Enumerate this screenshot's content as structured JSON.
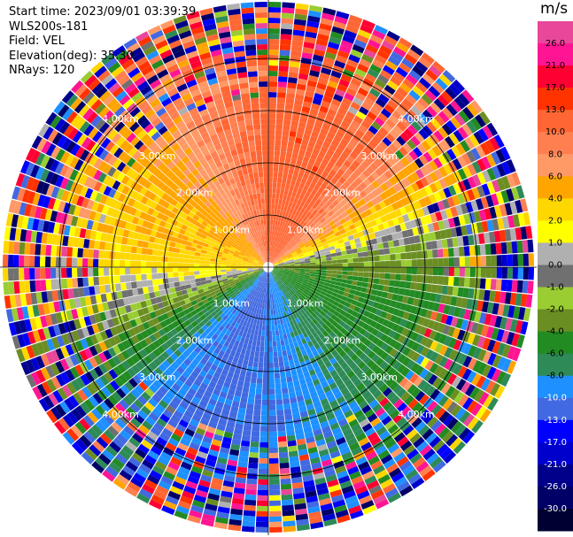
{
  "header": {
    "start_time": "Start time: 2023/09/01 03:39:39",
    "instrument": "WLS200s-181",
    "field": "Field: VEL",
    "elevation": "Elevation(deg): 35.30",
    "nrays": "NRays: 120"
  },
  "chart_data": {
    "type": "heatmap",
    "subtype": "ppi-polar-scan",
    "field": "VEL",
    "n_rays": 120,
    "range_ring_labels": [
      "1.00km",
      "2.00km",
      "3.00km",
      "4.00km"
    ],
    "max_range_km": 4.3,
    "colorbar": {
      "unit": "m/s",
      "ticks": [
        "26.0",
        "21.0",
        "17.0",
        "13.0",
        "10.0",
        "8.0",
        "6.0",
        "4.0",
        "2.0",
        "1.0",
        "0.0",
        "-1.0",
        "-2.0",
        "-4.0",
        "-6.0",
        "-8.0",
        "-10.0",
        "-13.0",
        "-17.0",
        "-21.0",
        "-26.0",
        "-30.0"
      ],
      "colors": [
        "#e8479a",
        "#ff1493",
        "#ff0033",
        "#ff3300",
        "#ff6633",
        "#ff7f50",
        "#ff9966",
        "#ffa500",
        "#ffd700",
        "#ffff00",
        "#b0b0b0",
        "#707070",
        "#9acd32",
        "#6b8e23",
        "#228b22",
        "#2e8b57",
        "#1e90ff",
        "#4169e1",
        "#0000ff",
        "#0000cd",
        "#00008b",
        "#000066",
        "#000033"
      ]
    },
    "velocity_pattern": [
      {
        "azimuth_deg": 20,
        "velocity": 12
      },
      {
        "azimuth_deg": 290,
        "velocity": 4
      },
      {
        "azimuth_deg": 200,
        "velocity": -11
      },
      {
        "azimuth_deg": 110,
        "velocity": -5
      }
    ]
  }
}
